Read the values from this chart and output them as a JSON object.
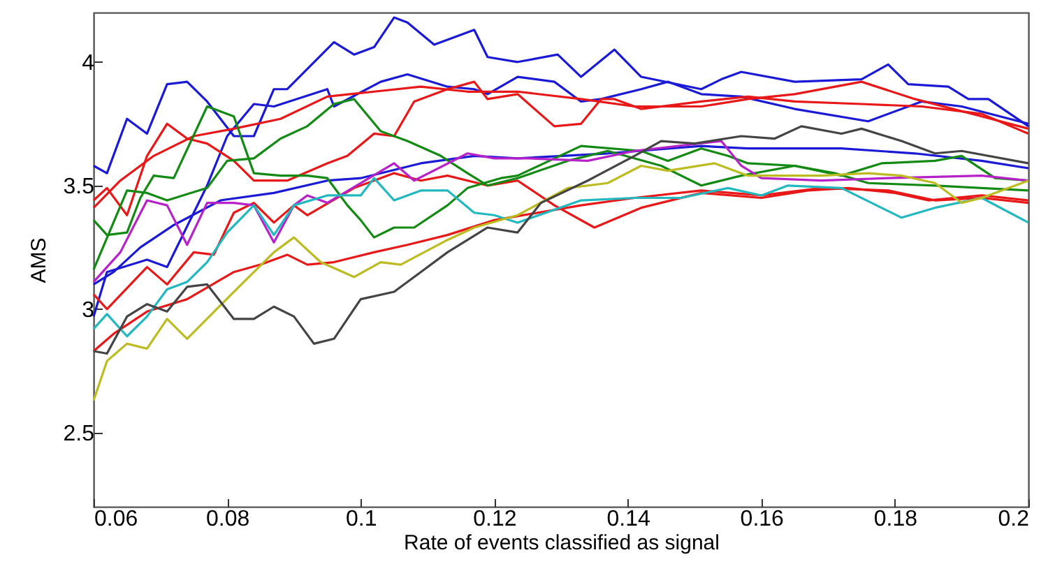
{
  "chart_data": {
    "type": "line",
    "xlabel": "Rate of events classified as signal",
    "ylabel": "AMS",
    "xlim": [
      0.06,
      0.2
    ],
    "ylim": [
      2.2,
      4.2
    ],
    "xticks": [
      0.06,
      0.08,
      0.1,
      0.12,
      0.14,
      0.16,
      0.18,
      0.2
    ],
    "yticks": [
      2.5,
      3,
      3.5,
      4
    ],
    "line_style": "solid",
    "series": [
      {
        "color": "#1a1ad6",
        "x": [
          0.06,
          0.062,
          0.065,
          0.068,
          0.071,
          0.074,
          0.077,
          0.081,
          0.084,
          0.087,
          0.089,
          0.096,
          0.099,
          0.102,
          0.105,
          0.107,
          0.111,
          0.117,
          0.119,
          0.1235,
          0.1295,
          0.133,
          0.138,
          0.142,
          0.151,
          0.154,
          0.157,
          0.165,
          0.175,
          0.179,
          0.182,
          0.188,
          0.191,
          0.194,
          0.2
        ],
        "values": [
          3.58,
          3.55,
          3.77,
          3.71,
          3.91,
          3.92,
          3.84,
          3.7,
          3.7,
          3.89,
          3.89,
          4.08,
          4.03,
          4.06,
          4.18,
          4.16,
          4.07,
          4.13,
          4.02,
          4.0,
          4.03,
          3.94,
          4.05,
          3.94,
          3.89,
          3.93,
          3.96,
          3.92,
          3.93,
          3.99,
          3.91,
          3.9,
          3.85,
          3.85,
          3.74
        ]
      },
      {
        "color": "#1a1ad6",
        "x": [
          0.06,
          0.062,
          0.068,
          0.071,
          0.077,
          0.08,
          0.084,
          0.087,
          0.095,
          0.096,
          0.103,
          0.107,
          0.113,
          0.117,
          0.119,
          0.1235,
          0.129,
          0.133,
          0.136,
          0.142,
          0.146,
          0.151,
          0.157,
          0.165,
          0.176,
          0.184,
          0.19,
          0.2
        ],
        "values": [
          2.97,
          3.15,
          3.2,
          3.17,
          3.5,
          3.7,
          3.83,
          3.82,
          3.89,
          3.82,
          3.92,
          3.95,
          3.9,
          3.89,
          3.87,
          3.94,
          3.92,
          3.84,
          3.85,
          3.89,
          3.92,
          3.87,
          3.86,
          3.81,
          3.76,
          3.84,
          3.82,
          3.75
        ]
      },
      {
        "color": "#1a1ad6",
        "x": [
          0.06,
          0.063,
          0.067,
          0.072,
          0.079,
          0.087,
          0.095,
          0.1,
          0.109,
          0.117,
          0.1235,
          0.137,
          0.151,
          0.158,
          0.172,
          0.183,
          0.193,
          0.2
        ],
        "values": [
          3.1,
          3.15,
          3.25,
          3.34,
          3.44,
          3.47,
          3.52,
          3.53,
          3.59,
          3.62,
          3.61,
          3.63,
          3.66,
          3.65,
          3.65,
          3.63,
          3.6,
          3.57
        ]
      },
      {
        "color": "#e81818",
        "x": [
          0.06,
          0.064,
          0.069,
          0.075,
          0.081,
          0.088,
          0.095,
          0.102,
          0.109,
          0.116,
          0.1235,
          0.133,
          0.141,
          0.151,
          0.158,
          0.165,
          0.175,
          0.183,
          0.193,
          0.2
        ],
        "values": [
          3.41,
          3.52,
          3.62,
          3.7,
          3.73,
          3.77,
          3.86,
          3.88,
          3.9,
          3.88,
          3.88,
          3.85,
          3.82,
          3.82,
          3.85,
          3.87,
          3.92,
          3.85,
          3.78,
          3.73
        ]
      },
      {
        "color": "#e81818",
        "x": [
          0.06,
          0.062,
          0.065,
          0.068,
          0.071,
          0.074,
          0.077,
          0.081,
          0.084,
          0.089,
          0.095,
          0.098,
          0.102,
          0.105,
          0.108,
          0.113,
          0.117,
          0.119,
          0.1235,
          0.129,
          0.133,
          0.136,
          0.138,
          0.142,
          0.151,
          0.158,
          0.165,
          0.175,
          0.184,
          0.193,
          0.2
        ],
        "values": [
          3.44,
          3.49,
          3.38,
          3.62,
          3.75,
          3.69,
          3.67,
          3.6,
          3.52,
          3.52,
          3.59,
          3.62,
          3.71,
          3.7,
          3.84,
          3.89,
          3.92,
          3.85,
          3.87,
          3.74,
          3.75,
          3.85,
          3.85,
          3.81,
          3.84,
          3.86,
          3.84,
          3.83,
          3.82,
          3.79,
          3.71
        ]
      },
      {
        "color": "#e81818",
        "x": [
          0.06,
          0.062,
          0.068,
          0.071,
          0.075,
          0.078,
          0.081,
          0.084,
          0.087,
          0.09,
          0.092,
          0.099,
          0.105,
          0.109,
          0.113,
          0.119,
          0.1235,
          0.129,
          0.135,
          0.142,
          0.151,
          0.16,
          0.167,
          0.173,
          0.18,
          0.185,
          0.193,
          0.2
        ],
        "values": [
          3.06,
          3.0,
          3.17,
          3.1,
          3.23,
          3.22,
          3.39,
          3.43,
          3.35,
          3.42,
          3.38,
          3.49,
          3.55,
          3.52,
          3.54,
          3.5,
          3.52,
          3.42,
          3.33,
          3.41,
          3.47,
          3.45,
          3.48,
          3.49,
          3.47,
          3.44,
          3.46,
          3.44
        ]
      },
      {
        "color": "#e81818",
        "x": [
          0.06,
          0.063,
          0.068,
          0.074,
          0.081,
          0.085,
          0.089,
          0.092,
          0.096,
          0.102,
          0.107,
          0.113,
          0.12,
          0.133,
          0.141,
          0.151,
          0.16,
          0.169,
          0.179,
          0.186,
          0.193,
          0.2
        ],
        "values": [
          2.83,
          2.9,
          2.99,
          3.04,
          3.15,
          3.18,
          3.22,
          3.18,
          3.19,
          3.23,
          3.26,
          3.3,
          3.36,
          3.42,
          3.45,
          3.48,
          3.46,
          3.49,
          3.48,
          3.44,
          3.45,
          3.43
        ]
      },
      {
        "color": "#138a13",
        "x": [
          0.06,
          0.062,
          0.065,
          0.067,
          0.069,
          0.072,
          0.077,
          0.081,
          0.084,
          0.088,
          0.092,
          0.095,
          0.098,
          0.1,
          0.102,
          0.105,
          0.108,
          0.113,
          0.116,
          0.121,
          0.1235,
          0.133,
          0.142,
          0.146,
          0.151,
          0.155,
          0.158,
          0.165,
          0.172,
          0.178,
          0.186,
          0.19,
          0.195,
          0.2
        ],
        "values": [
          3.36,
          3.3,
          3.31,
          3.45,
          3.54,
          3.53,
          3.82,
          3.78,
          3.55,
          3.54,
          3.54,
          3.53,
          3.42,
          3.36,
          3.29,
          3.33,
          3.33,
          3.42,
          3.49,
          3.53,
          3.54,
          3.66,
          3.64,
          3.6,
          3.65,
          3.62,
          3.59,
          3.58,
          3.54,
          3.59,
          3.6,
          3.62,
          3.53,
          3.52
        ]
      },
      {
        "color": "#138a13",
        "x": [
          0.06,
          0.065,
          0.068,
          0.071,
          0.077,
          0.08,
          0.084,
          0.088,
          0.092,
          0.096,
          0.099,
          0.103,
          0.107,
          0.112,
          0.116,
          0.119,
          0.1235,
          0.131,
          0.137,
          0.145,
          0.151,
          0.157,
          0.165,
          0.171,
          0.176,
          0.186,
          0.193,
          0.2
        ],
        "values": [
          3.16,
          3.48,
          3.47,
          3.44,
          3.49,
          3.6,
          3.61,
          3.69,
          3.74,
          3.83,
          3.85,
          3.72,
          3.68,
          3.62,
          3.55,
          3.5,
          3.53,
          3.6,
          3.64,
          3.58,
          3.5,
          3.54,
          3.58,
          3.55,
          3.51,
          3.5,
          3.49,
          3.48
        ]
      },
      {
        "color": "#b722c8",
        "x": [
          0.06,
          0.064,
          0.068,
          0.071,
          0.074,
          0.077,
          0.081,
          0.084,
          0.087,
          0.09,
          0.092,
          0.095,
          0.1,
          0.105,
          0.108,
          0.116,
          0.12,
          0.125,
          0.134,
          0.141,
          0.154,
          0.157,
          0.16,
          0.169,
          0.179,
          0.193,
          0.2
        ],
        "values": [
          3.11,
          3.23,
          3.44,
          3.42,
          3.26,
          3.43,
          3.43,
          3.42,
          3.27,
          3.42,
          3.46,
          3.43,
          3.51,
          3.59,
          3.52,
          3.63,
          3.61,
          3.61,
          3.6,
          3.64,
          3.68,
          3.58,
          3.53,
          3.52,
          3.53,
          3.54,
          3.52
        ]
      },
      {
        "color": "#22b8bf",
        "x": [
          0.06,
          0.062,
          0.065,
          0.068,
          0.071,
          0.074,
          0.077,
          0.08,
          0.084,
          0.087,
          0.09,
          0.095,
          0.1,
          0.102,
          0.105,
          0.109,
          0.113,
          0.117,
          0.12,
          0.1235,
          0.133,
          0.141,
          0.148,
          0.155,
          0.16,
          0.164,
          0.172,
          0.181,
          0.186,
          0.193,
          0.2
        ],
        "values": [
          2.92,
          2.98,
          2.89,
          2.97,
          3.08,
          3.11,
          3.19,
          3.31,
          3.42,
          3.3,
          3.42,
          3.46,
          3.46,
          3.53,
          3.44,
          3.48,
          3.48,
          3.39,
          3.38,
          3.35,
          3.44,
          3.45,
          3.45,
          3.49,
          3.46,
          3.5,
          3.49,
          3.37,
          3.41,
          3.45,
          3.35
        ]
      },
      {
        "color": "#bcbc22",
        "x": [
          0.06,
          0.062,
          0.065,
          0.068,
          0.071,
          0.074,
          0.081,
          0.087,
          0.09,
          0.094,
          0.099,
          0.103,
          0.106,
          0.113,
          0.117,
          0.1235,
          0.131,
          0.137,
          0.142,
          0.146,
          0.153,
          0.158,
          0.169,
          0.176,
          0.181,
          0.186,
          0.19,
          0.193,
          0.2
        ],
        "values": [
          2.63,
          2.79,
          2.86,
          2.84,
          2.96,
          2.88,
          3.07,
          3.23,
          3.29,
          3.19,
          3.13,
          3.19,
          3.18,
          3.28,
          3.33,
          3.38,
          3.49,
          3.51,
          3.58,
          3.56,
          3.59,
          3.54,
          3.54,
          3.55,
          3.54,
          3.51,
          3.43,
          3.45,
          3.52
        ]
      },
      {
        "color": "#444444",
        "x": [
          0.06,
          0.062,
          0.065,
          0.068,
          0.071,
          0.074,
          0.077,
          0.081,
          0.084,
          0.087,
          0.09,
          0.093,
          0.096,
          0.1,
          0.105,
          0.109,
          0.113,
          0.119,
          0.1235,
          0.127,
          0.134,
          0.141,
          0.145,
          0.15,
          0.157,
          0.162,
          0.166,
          0.172,
          0.175,
          0.181,
          0.186,
          0.19,
          0.2
        ],
        "values": [
          2.83,
          2.82,
          2.97,
          3.02,
          2.99,
          3.09,
          3.1,
          2.96,
          2.96,
          3.01,
          2.97,
          2.86,
          2.88,
          3.04,
          3.07,
          3.15,
          3.23,
          3.33,
          3.31,
          3.43,
          3.52,
          3.62,
          3.68,
          3.67,
          3.7,
          3.69,
          3.74,
          3.71,
          3.73,
          3.68,
          3.63,
          3.64,
          3.59
        ]
      }
    ]
  }
}
